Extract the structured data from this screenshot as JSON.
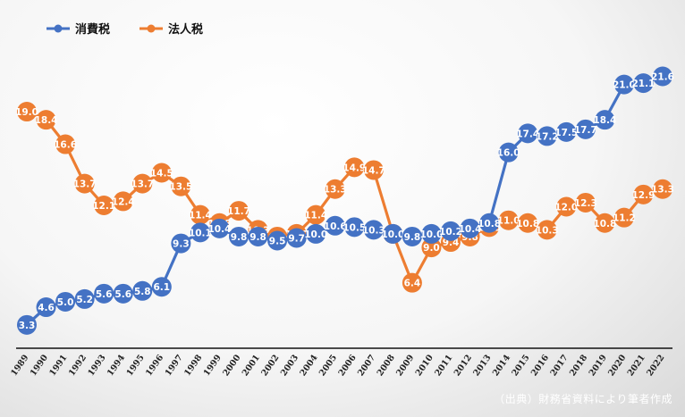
{
  "chart_data": {
    "type": "line",
    "categories": [
      "1989",
      "1990",
      "1991",
      "1992",
      "1993",
      "1994",
      "1995",
      "1996",
      "1997",
      "1998",
      "1999",
      "2000",
      "2001",
      "2002",
      "2003",
      "2004",
      "2005",
      "2006",
      "2007",
      "2008",
      "2009",
      "2010",
      "2011",
      "2012",
      "2013",
      "2014",
      "2015",
      "2016",
      "2017",
      "2018",
      "2019",
      "2020",
      "2021",
      "2022"
    ],
    "series": [
      {
        "name": "消費税",
        "color": "#4472C4",
        "values": [
          3.3,
          4.6,
          5.0,
          5.2,
          5.6,
          5.6,
          5.8,
          6.1,
          9.3,
          10.1,
          10.4,
          9.8,
          9.8,
          9.5,
          9.7,
          10.0,
          10.6,
          10.5,
          10.3,
          10.0,
          9.8,
          10.0,
          10.2,
          10.4,
          10.8,
          16.0,
          17.4,
          17.2,
          17.5,
          17.7,
          18.4,
          21.0,
          21.1,
          21.6
        ]
      },
      {
        "name": "法人税",
        "color": "#ED7D31",
        "values": [
          19.0,
          18.4,
          16.6,
          13.7,
          12.1,
          12.4,
          13.7,
          14.5,
          13.5,
          11.4,
          10.8,
          11.7,
          10.3,
          9.8,
          10.0,
          11.4,
          13.3,
          14.9,
          14.7,
          10.0,
          6.4,
          9.0,
          9.4,
          9.8,
          10.5,
          11.0,
          10.8,
          10.3,
          12.0,
          12.3,
          10.8,
          11.2,
          12.9,
          13.3
        ]
      }
    ],
    "ylim": [
      0,
      24
    ],
    "grid": false,
    "legend_position": "top-left"
  },
  "source_note": "（出典）財務省資料により筆者作成"
}
